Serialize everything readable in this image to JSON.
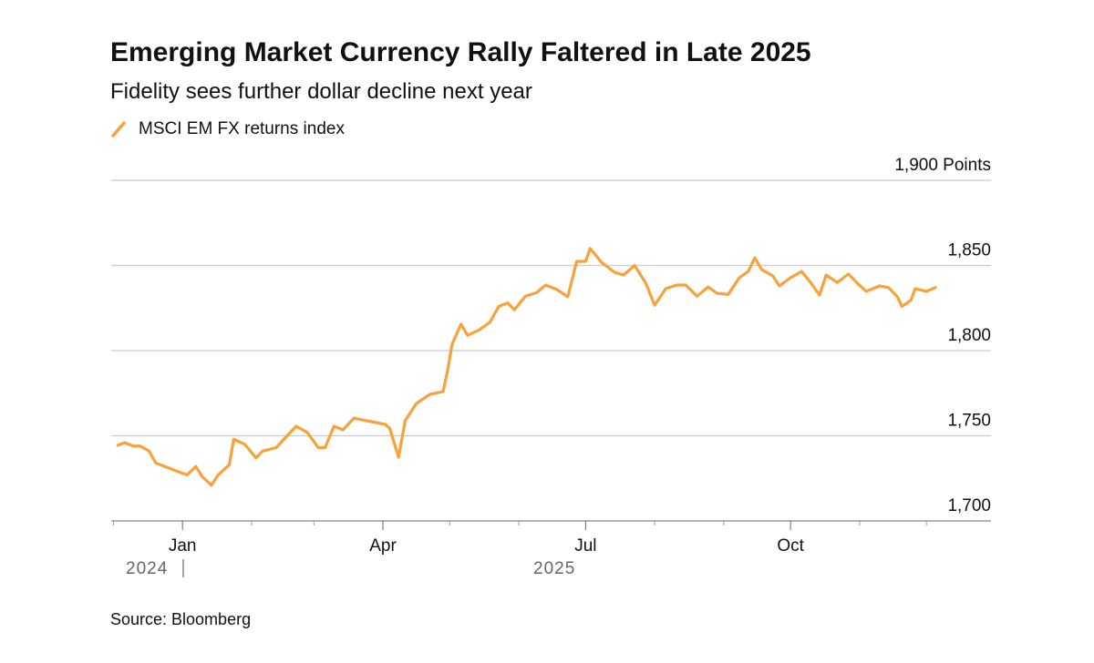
{
  "chart_data": {
    "type": "line",
    "title": "Emerging Market Currency Rally Faltered in Late 2025",
    "subtitle": "Fidelity sees further dollar decline next year",
    "source": "Source: Bloomberg",
    "annotations": [
      "2024",
      "2025"
    ],
    "x": [
      "2024-12-03",
      "2024-12-06",
      "2024-12-10",
      "2024-12-13",
      "2024-12-17",
      "2024-12-20",
      "2024-12-27",
      "2025-01-03",
      "2025-01-07",
      "2025-01-10",
      "2025-01-14",
      "2025-01-17",
      "2025-01-22",
      "2025-01-24",
      "2025-01-29",
      "2025-02-03",
      "2025-02-06",
      "2025-02-12",
      "2025-02-17",
      "2025-02-21",
      "2025-02-26",
      "2025-03-03",
      "2025-03-06",
      "2025-03-10",
      "2025-03-14",
      "2025-03-19",
      "2025-03-24",
      "2025-03-28",
      "2025-04-02",
      "2025-04-04",
      "2025-04-08",
      "2025-04-11",
      "2025-04-16",
      "2025-04-22",
      "2025-04-28",
      "2025-04-30",
      "2025-05-02",
      "2025-05-06",
      "2025-05-09",
      "2025-05-14",
      "2025-05-19",
      "2025-05-23",
      "2025-05-27",
      "2025-05-30",
      "2025-06-04",
      "2025-06-09",
      "2025-06-13",
      "2025-06-18",
      "2025-06-23",
      "2025-06-27",
      "2025-07-01",
      "2025-07-03",
      "2025-07-08",
      "2025-07-14",
      "2025-07-18",
      "2025-07-23",
      "2025-07-28",
      "2025-08-01",
      "2025-08-06",
      "2025-08-11",
      "2025-08-15",
      "2025-08-20",
      "2025-08-25",
      "2025-08-29",
      "2025-09-03",
      "2025-09-08",
      "2025-09-12",
      "2025-09-15",
      "2025-09-18",
      "2025-09-23",
      "2025-09-26",
      "2025-10-01",
      "2025-10-06",
      "2025-10-10",
      "2025-10-14",
      "2025-10-17",
      "2025-10-22",
      "2025-10-27",
      "2025-10-31",
      "2025-11-04",
      "2025-11-10",
      "2025-11-14",
      "2025-11-18",
      "2025-11-20",
      "2025-11-24",
      "2025-11-26",
      "2025-12-01",
      "2025-12-05"
    ],
    "series": [
      {
        "name": "MSCI EM FX returns index",
        "color": "#f7a23b",
        "values": [
          1744.4,
          1746,
          1743.9,
          1744,
          1741,
          1734,
          1730.5,
          1727,
          1732,
          1725.7,
          1721,
          1727,
          1733,
          1748,
          1745,
          1737,
          1741,
          1743,
          1750,
          1755.6,
          1752,
          1743,
          1743,
          1755.6,
          1753.5,
          1760.4,
          1759,
          1758,
          1756.7,
          1754.5,
          1737.4,
          1759,
          1769,
          1774.3,
          1776,
          1788,
          1803.7,
          1815.5,
          1809,
          1812,
          1816.6,
          1826,
          1828,
          1824,
          1832,
          1834,
          1838.5,
          1836,
          1831.6,
          1852.4,
          1852.4,
          1860,
          1852,
          1846,
          1844.4,
          1850,
          1839.6,
          1826.7,
          1836.4,
          1838.5,
          1838.5,
          1832,
          1837.4,
          1833.7,
          1833,
          1842.8,
          1846.5,
          1854.5,
          1847.6,
          1843.9,
          1838,
          1842.8,
          1846.5,
          1840,
          1832.6,
          1844.4,
          1840,
          1845,
          1839.6,
          1834.8,
          1838,
          1837,
          1831.6,
          1826,
          1829.5,
          1836.4,
          1834.8,
          1837
        ]
      }
    ],
    "xlim": [
      "2024-11-30",
      "2025-12-30"
    ],
    "xticks": [
      {
        "value": "2025-01-01",
        "label": "Jan"
      },
      {
        "value": "2025-04-01",
        "label": "Apr"
      },
      {
        "value": "2025-07-01",
        "label": "Jul"
      },
      {
        "value": "2025-10-01",
        "label": "Oct"
      }
    ],
    "xminor_ticks": [
      "2024-12-01",
      "2025-02-01",
      "2025-03-01",
      "2025-05-01",
      "2025-06-01",
      "2025-08-01",
      "2025-09-01",
      "2025-11-01",
      "2025-12-01"
    ],
    "ylim": [
      1700,
      1900
    ],
    "yticks": [
      {
        "value": 1700,
        "label": "1,700"
      },
      {
        "value": 1750,
        "label": "1,750"
      },
      {
        "value": 1800,
        "label": "1,800"
      },
      {
        "value": 1850,
        "label": "1,850"
      },
      {
        "value": 1900,
        "label": "1,900 Points"
      }
    ],
    "grid": true,
    "legend": "top-left"
  }
}
